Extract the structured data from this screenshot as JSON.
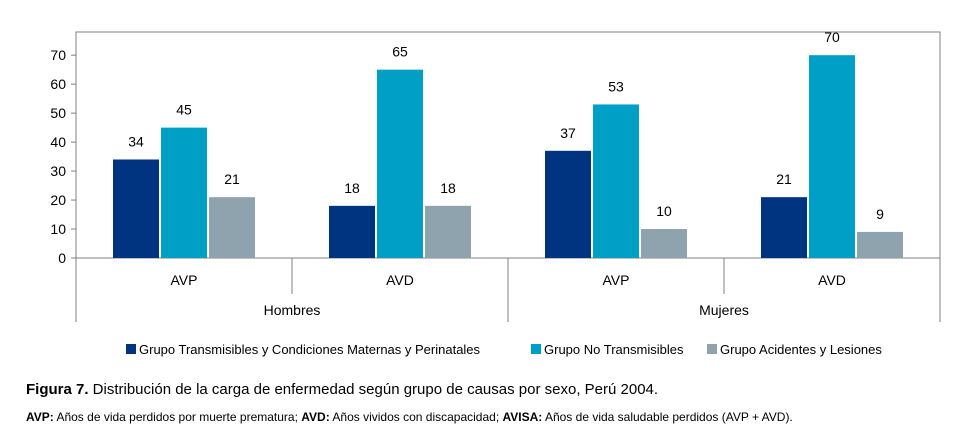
{
  "chart_data": {
    "type": "bar",
    "groups": [
      {
        "label": "Hombres",
        "categories": [
          "AVP",
          "AVD"
        ]
      },
      {
        "label": "Mujeres",
        "categories": [
          "AVP",
          "AVD"
        ]
      }
    ],
    "categories": [
      "AVP",
      "AVD",
      "AVP",
      "AVD"
    ],
    "series": [
      {
        "name": "Grupo Transmisibles y Condiciones Maternas y Perinatales",
        "color": "#003380",
        "values": [
          34,
          18,
          37,
          21
        ]
      },
      {
        "name": "Grupo No Transmisibles",
        "color": "#009fc6",
        "values": [
          45,
          65,
          53,
          70
        ]
      },
      {
        "name": "Grupo Acidentes y Lesiones",
        "color": "#8fa3ae",
        "values": [
          21,
          18,
          10,
          9
        ]
      }
    ],
    "ylim": [
      0,
      78
    ],
    "yticks": [
      0,
      10,
      20,
      30,
      40,
      50,
      60,
      70
    ],
    "grid": false,
    "legend": "bottom"
  },
  "caption": {
    "label": "Figura 7.",
    "text": " Distribución de la carga de enfermedad según grupo de causas por sexo, Perú 2004."
  },
  "footnote": [
    {
      "bold": "AVP:",
      "text": " Años de vida perdidos por muerte prematura; "
    },
    {
      "bold": "AVD:",
      "text": " Años vividos con discapacidad; "
    },
    {
      "bold": "AVISA:",
      "text": " Años de vida saludable perdidos (AVP + AVD)."
    }
  ]
}
